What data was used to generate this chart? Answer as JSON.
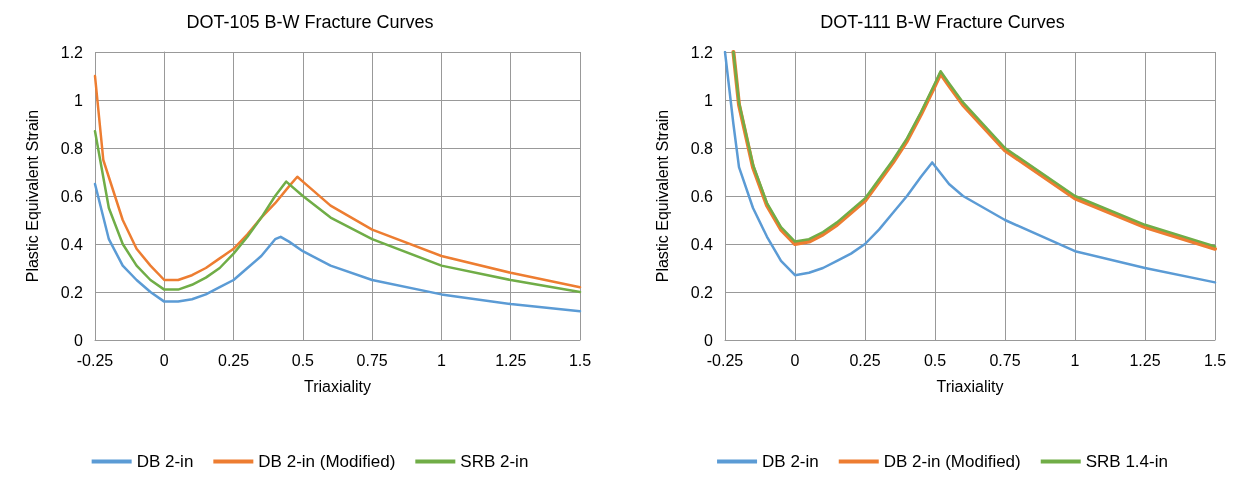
{
  "chart_data": [
    {
      "type": "line",
      "title": "DOT-105 B-W Fracture Curves",
      "xlabel": "Triaxiality",
      "ylabel": "Plastic Equivalent Strain",
      "xlim": [
        -0.25,
        1.5
      ],
      "xticks": [
        -0.25,
        0,
        0.25,
        0.5,
        0.75,
        1,
        1.25,
        1.5
      ],
      "ylim": [
        0,
        1.2
      ],
      "yticks": [
        0,
        0.2,
        0.4,
        0.6,
        0.8,
        1,
        1.2
      ],
      "grid": true,
      "legend": "bottom",
      "marker": "none",
      "line_style": "solid",
      "series": [
        {
          "name": "DB 2-in",
          "color": "#5b9bd5",
          "x": [
            -0.25,
            -0.2,
            -0.15,
            -0.1,
            -0.05,
            0,
            0.05,
            0.1,
            0.15,
            0.2,
            0.25,
            0.3,
            0.35,
            0.4,
            0.42,
            0.45,
            0.5,
            0.6,
            0.75,
            1,
            1.25,
            1.5
          ],
          "values": [
            0.65,
            0.42,
            0.31,
            0.25,
            0.2,
            0.16,
            0.16,
            0.17,
            0.19,
            0.22,
            0.25,
            0.3,
            0.35,
            0.42,
            0.43,
            0.41,
            0.37,
            0.31,
            0.25,
            0.19,
            0.15,
            0.12
          ]
        },
        {
          "name": "DB 2-in (Modified)",
          "color": "#ed7d31",
          "x": [
            -0.25,
            -0.22,
            -0.15,
            -0.1,
            -0.05,
            0,
            0.05,
            0.1,
            0.15,
            0.2,
            0.25,
            0.3,
            0.35,
            0.4,
            0.45,
            0.48,
            0.5,
            0.6,
            0.75,
            1,
            1.25,
            1.5
          ],
          "values": [
            1.1,
            0.75,
            0.5,
            0.38,
            0.31,
            0.25,
            0.25,
            0.27,
            0.3,
            0.34,
            0.38,
            0.44,
            0.51,
            0.57,
            0.64,
            0.68,
            0.66,
            0.56,
            0.46,
            0.35,
            0.28,
            0.22
          ]
        },
        {
          "name": "SRB 2-in",
          "color": "#70ad47",
          "x": [
            -0.25,
            -0.2,
            -0.15,
            -0.1,
            -0.05,
            0,
            0.05,
            0.1,
            0.15,
            0.2,
            0.25,
            0.3,
            0.35,
            0.4,
            0.44,
            0.5,
            0.6,
            0.75,
            1,
            1.25,
            1.5
          ],
          "values": [
            0.87,
            0.55,
            0.4,
            0.31,
            0.25,
            0.21,
            0.21,
            0.23,
            0.26,
            0.3,
            0.36,
            0.43,
            0.51,
            0.6,
            0.66,
            0.6,
            0.51,
            0.42,
            0.31,
            0.25,
            0.2
          ]
        }
      ]
    },
    {
      "type": "line",
      "title": "DOT-111 B-W Fracture Curves",
      "xlabel": "Triaxiality",
      "ylabel": "Plastic Equivalent Strain",
      "xlim": [
        -0.25,
        1.5
      ],
      "xticks": [
        -0.25,
        0,
        0.25,
        0.5,
        0.75,
        1,
        1.25,
        1.5
      ],
      "ylim": [
        0,
        1.2
      ],
      "yticks": [
        0,
        0.2,
        0.4,
        0.6,
        0.8,
        1,
        1.2
      ],
      "grid": true,
      "legend": "bottom",
      "marker": "none",
      "line_style": "solid",
      "series": [
        {
          "name": "DB 2-in",
          "color": "#5b9bd5",
          "x": [
            -0.25,
            -0.22,
            -0.2,
            -0.15,
            -0.1,
            -0.05,
            0,
            0.05,
            0.1,
            0.15,
            0.2,
            0.25,
            0.3,
            0.35,
            0.4,
            0.45,
            0.49,
            0.55,
            0.6,
            0.75,
            1,
            1.25,
            1.5
          ],
          "values": [
            1.2,
            0.9,
            0.72,
            0.55,
            0.43,
            0.33,
            0.27,
            0.28,
            0.3,
            0.33,
            0.36,
            0.4,
            0.46,
            0.53,
            0.6,
            0.68,
            0.74,
            0.65,
            0.6,
            0.5,
            0.37,
            0.3,
            0.24
          ]
        },
        {
          "name": "DB 2-in (Modified)",
          "color": "#ed7d31",
          "x": [
            -0.22,
            -0.2,
            -0.15,
            -0.1,
            -0.05,
            0,
            0.05,
            0.1,
            0.15,
            0.2,
            0.25,
            0.3,
            0.35,
            0.4,
            0.45,
            0.5,
            0.52,
            0.55,
            0.6,
            0.75,
            1,
            1.25,
            1.5
          ],
          "values": [
            1.2,
            0.98,
            0.72,
            0.56,
            0.46,
            0.4,
            0.41,
            0.44,
            0.48,
            0.53,
            0.58,
            0.66,
            0.74,
            0.83,
            0.94,
            1.06,
            1.11,
            1.06,
            0.98,
            0.79,
            0.59,
            0.47,
            0.38
          ]
        },
        {
          "name": "SRB 1.4-in",
          "color": "#70ad47",
          "x": [
            -0.22,
            -0.2,
            -0.15,
            -0.1,
            -0.05,
            0,
            0.05,
            0.1,
            0.15,
            0.2,
            0.25,
            0.3,
            0.35,
            0.4,
            0.45,
            0.5,
            0.52,
            0.55,
            0.6,
            0.75,
            1,
            1.25,
            1.5
          ],
          "values": [
            1.2,
            0.99,
            0.73,
            0.57,
            0.47,
            0.41,
            0.42,
            0.45,
            0.49,
            0.54,
            0.59,
            0.67,
            0.75,
            0.84,
            0.95,
            1.07,
            1.12,
            1.07,
            0.99,
            0.8,
            0.6,
            0.48,
            0.39
          ]
        }
      ]
    }
  ]
}
